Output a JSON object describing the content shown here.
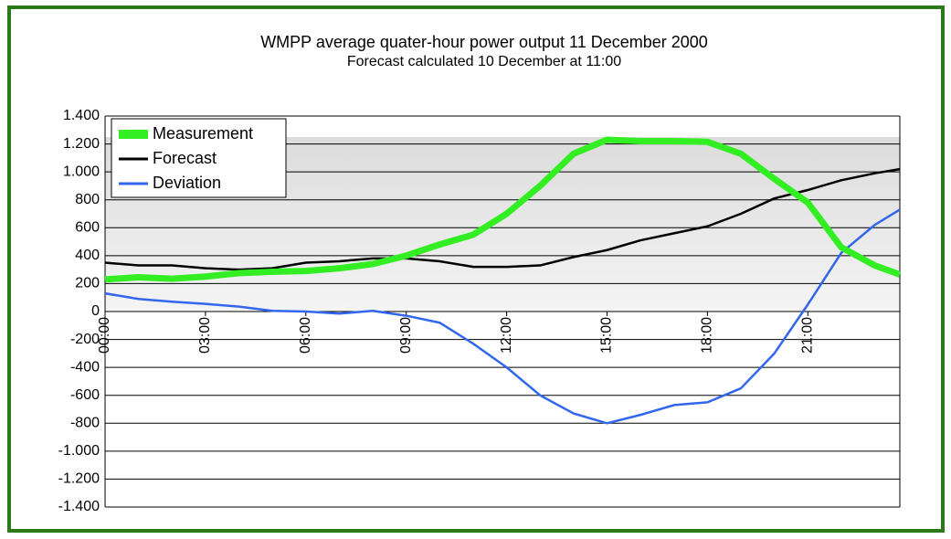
{
  "chart_data": {
    "type": "line",
    "title": "WMPP average quater-hour power output 11 December 2000",
    "subtitle": "Forecast calculated 10 December at 11:00",
    "x": [
      0,
      1,
      2,
      3,
      4,
      5,
      6,
      7,
      8,
      9,
      10,
      11,
      12,
      13,
      14,
      15,
      16,
      17,
      18,
      19,
      20,
      21,
      22,
      23,
      23.75
    ],
    "series": [
      {
        "name": "Measurement",
        "color": "#33ee22",
        "values": [
          230,
          245,
          235,
          250,
          275,
          285,
          290,
          310,
          340,
          400,
          480,
          550,
          700,
          900,
          1130,
          1230,
          1220,
          1220,
          1215,
          1130,
          950,
          780,
          460,
          330,
          265
        ]
      },
      {
        "name": "Forecast",
        "color": "#000000",
        "values": [
          350,
          330,
          330,
          310,
          300,
          310,
          350,
          360,
          380,
          380,
          360,
          320,
          320,
          330,
          390,
          440,
          510,
          560,
          610,
          700,
          810,
          870,
          940,
          990,
          1020
        ]
      },
      {
        "name": "Deviation",
        "color": "#3366ee",
        "values": [
          130,
          90,
          70,
          55,
          35,
          5,
          0,
          -15,
          5,
          -30,
          -80,
          -230,
          -400,
          -600,
          -730,
          -800,
          -740,
          -670,
          -650,
          -550,
          -300,
          50,
          420,
          620,
          730
        ]
      }
    ],
    "xlim": [
      0,
      23.75
    ],
    "xticks": [
      {
        "value": 0,
        "label": "00:00"
      },
      {
        "value": 3,
        "label": "03:00"
      },
      {
        "value": 6,
        "label": "06:00"
      },
      {
        "value": 9,
        "label": "09:00"
      },
      {
        "value": 12,
        "label": "12:00"
      },
      {
        "value": 15,
        "label": "15:00"
      },
      {
        "value": 18,
        "label": "18:00"
      },
      {
        "value": 21,
        "label": "21:00"
      }
    ],
    "ylim": [
      -1400,
      1400
    ],
    "yticks": [
      {
        "value": 1400,
        "label": "1.400"
      },
      {
        "value": 1200,
        "label": "1.200"
      },
      {
        "value": 1000,
        "label": "1.000"
      },
      800,
      600,
      400,
      200,
      0,
      -200,
      -400,
      -600,
      -800,
      {
        "value": -1000,
        "label": "-1.000"
      },
      {
        "value": -1200,
        "label": "-1.200"
      },
      {
        "value": -1400,
        "label": "-1.400"
      }
    ],
    "grid": true,
    "legend": "top-left"
  }
}
